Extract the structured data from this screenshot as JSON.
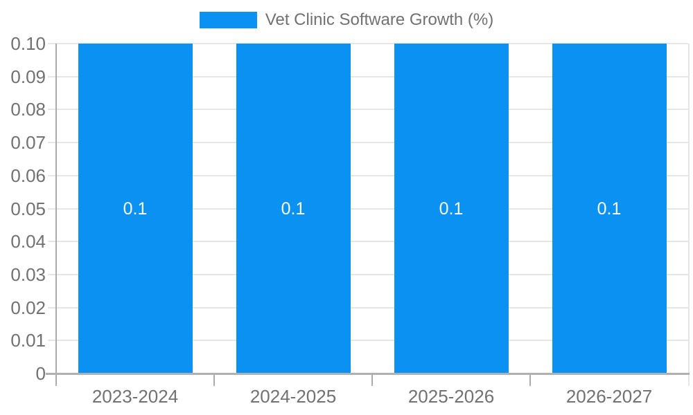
{
  "legend": {
    "label": "Vet Clinic Software Growth (%)"
  },
  "chart_data": {
    "type": "bar",
    "title": "Vet Clinic Software Growth (%)",
    "categories": [
      "2023-2024",
      "2024-2025",
      "2025-2026",
      "2026-2027"
    ],
    "values": [
      0.1,
      0.1,
      0.1,
      0.1
    ],
    "bar_labels": [
      "0.1",
      "0.1",
      "0.1",
      "0.1"
    ],
    "xlabel": "",
    "ylabel": "",
    "ylim": [
      0,
      0.1
    ],
    "ytick_step": 0.01,
    "ytick_labels": [
      "0",
      "0.01",
      "0.02",
      "0.03",
      "0.04",
      "0.05",
      "0.06",
      "0.07",
      "0.08",
      "0.09",
      "0.10"
    ],
    "grid": true,
    "legend_position": "top-center",
    "colors": {
      "bar": "#0a91f2",
      "grid_line": "#e6e6e6",
      "axis_line": "#b0b0b0",
      "tick_line": "#ababab",
      "text": "#717171",
      "bar_label_text": "#ffffff",
      "background": "#ffffff"
    }
  }
}
